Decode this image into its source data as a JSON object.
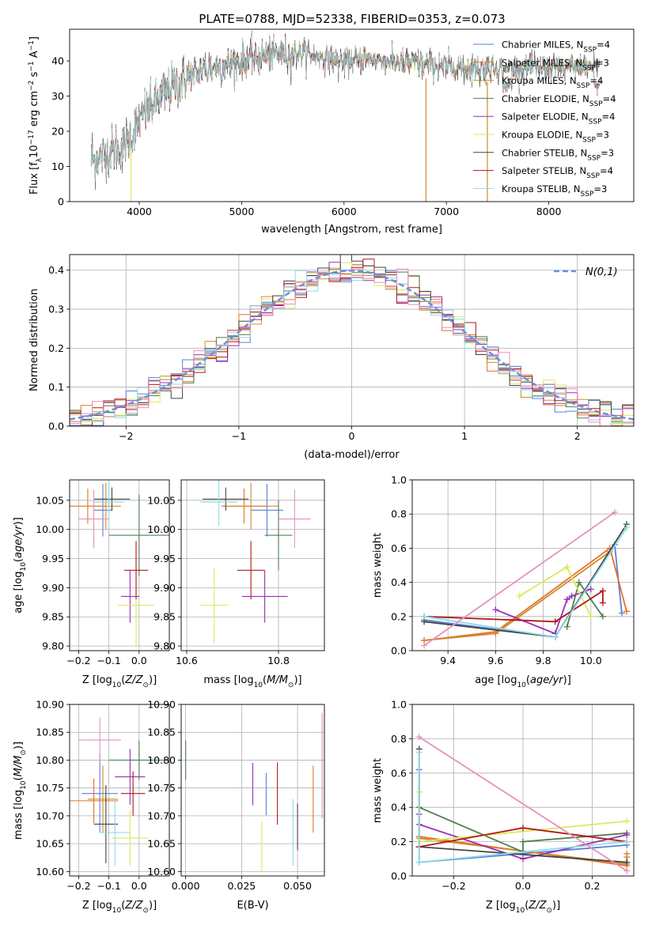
{
  "figure_title": "PLATE=0788, MJD=52338, FIBERID=0353, z=0.073",
  "colors": {
    "Chabrier MILES": "#5b7fd6",
    "Salpeter MILES": "#e2722a",
    "Kroupa MILES": "#d08a2d",
    "Chabrier ELODIE": "#4f7f50",
    "Salpeter ELODIE": "#9a2fb5",
    "Kroupa ELODIE": "#d9ea5b",
    "Chabrier STELIB": "#444444",
    "Salpeter STELIB": "#b01818",
    "Kroupa STELIB": "#8fdce6",
    "pink": "#e88fbf",
    "normal": "#6a8fe0"
  },
  "chart_data": [
    {
      "id": "spectrum",
      "type": "line",
      "title": "PLATE=0788, MJD=52338, FIBERID=0353, z=0.073",
      "xlabel": "wavelength [Angstrom, rest frame]",
      "ylabel": "Flux [f_λ 10^-17 erg cm^-2 s^-1 A^-1]",
      "xlim": [
        3320,
        8830
      ],
      "ylim": [
        0,
        49
      ],
      "xticks": [
        "4000",
        "5000",
        "6000",
        "7000",
        "8000"
      ],
      "yticks": [
        "0",
        "10",
        "20",
        "30",
        "40"
      ],
      "legend_position": "top-right",
      "legend": [
        "Chabrier MILES, N_SSP=4",
        "Salpeter MILES, N_SSP=3",
        "Kroupa MILES, N_SSP=4",
        "Chabrier ELODIE, N_SSP=4",
        "Salpeter ELODIE, N_SSP=4",
        "Kroupa ELODIE, N_SSP=3",
        "Chabrier STELIB, N_SSP=3",
        "Salpeter STELIB, N_SSP=4",
        "Kroupa STELIB, N_SSP=3"
      ],
      "continuum": {
        "x": [
          3550,
          3700,
          3850,
          3950,
          4050,
          4150,
          4250,
          4350,
          4450,
          4600,
          4800,
          5000,
          5200,
          5400,
          5600,
          5800,
          6000,
          6200,
          6400,
          6600,
          6800,
          7000,
          7200,
          7400,
          7600,
          7800,
          8000,
          8200,
          8400,
          8500
        ],
        "y": [
          12,
          14,
          16,
          20,
          25,
          28,
          31,
          33,
          35,
          37,
          38.5,
          40,
          41.5,
          42,
          42,
          41,
          39.5,
          40.5,
          40,
          39.5,
          39,
          38.5,
          38,
          38,
          38,
          38,
          38,
          38,
          38.5,
          39
        ]
      },
      "dropouts_x": [
        3920,
        6800,
        7400
      ]
    },
    {
      "id": "residuals",
      "type": "histogram",
      "xlabel": "(data-model)/error",
      "ylabel": "Normed distribution",
      "xlim": [
        -2.5,
        2.5
      ],
      "ylim": [
        0,
        0.44
      ],
      "xticks": [
        "−2",
        "−1",
        "0",
        "1",
        "2"
      ],
      "yticks": [
        "0.0",
        "0.1",
        "0.2",
        "0.3",
        "0.4"
      ],
      "bin_width": 0.1,
      "normal_label": "N(0,1)",
      "grid": true
    },
    {
      "id": "age_vs_Z",
      "type": "errorbar",
      "xlabel": "Z [log10(Z/Z_sun)]",
      "ylabel": "age [log10(age/yr)]",
      "xlim": [
        -0.23,
        0.1
      ],
      "ylim": [
        9.792,
        10.085
      ],
      "xticks": [
        "−0.2",
        "−0.1",
        "0.0"
      ],
      "yticks": [
        "9.80",
        "9.85",
        "9.90",
        "9.95",
        "10.00",
        "10.05"
      ],
      "points": [
        {
          "c": "Chabrier MILES",
          "x": -0.12,
          "y": 10.033,
          "xe": 0.03,
          "ye": 0.045
        },
        {
          "c": "Salpeter MILES",
          "x": -0.17,
          "y": 10.04,
          "xe": 0.06,
          "ye": 0.03
        },
        {
          "c": "Kroupa MILES",
          "x": -0.11,
          "y": 10.04,
          "xe": 0.05,
          "ye": 0.04
        },
        {
          "c": "Chabrier ELODIE",
          "x": 0.0,
          "y": 9.99,
          "xe": 0.1,
          "ye": 0.07
        },
        {
          "c": "Salpeter ELODIE",
          "x": -0.03,
          "y": 9.885,
          "xe": 0.03,
          "ye": 0.045
        },
        {
          "c": "Kroupa ELODIE",
          "x": -0.01,
          "y": 9.87,
          "xe": 0.06,
          "ye": 0.07
        },
        {
          "c": "Chabrier STELIB",
          "x": -0.09,
          "y": 10.052,
          "xe": 0.06,
          "ye": 0.02
        },
        {
          "c": "Salpeter STELIB",
          "x": -0.01,
          "y": 9.93,
          "xe": 0.04,
          "ye": 0.05
        },
        {
          "c": "Kroupa STELIB",
          "x": -0.1,
          "y": 10.047,
          "xe": 0.05,
          "ye": 0.04
        },
        {
          "c": "pink",
          "x": -0.15,
          "y": 10.018,
          "xe": 0.05,
          "ye": 0.05
        }
      ]
    },
    {
      "id": "age_vs_mass",
      "type": "errorbar",
      "xlabel": "mass [log10(M/M_sun)]",
      "ylabel": "",
      "xlim": [
        10.588,
        10.9
      ],
      "ylim": [
        9.792,
        10.085
      ],
      "xticks": [
        "10.6",
        "10.8"
      ],
      "yticks": [
        "9.80",
        "9.85",
        "9.90",
        "9.95",
        "10.00",
        "10.05"
      ],
      "points": [
        {
          "c": "Chabrier MILES",
          "x": 10.775,
          "y": 10.033,
          "xe": 0.035,
          "ye": 0.045
        },
        {
          "c": "Salpeter MILES",
          "x": 10.725,
          "y": 10.04,
          "xe": 0.05,
          "ye": 0.03
        },
        {
          "c": "Kroupa MILES",
          "x": 10.74,
          "y": 10.04,
          "xe": 0.06,
          "ye": 0.04
        },
        {
          "c": "Chabrier ELODIE",
          "x": 10.8,
          "y": 9.99,
          "xe": 0.03,
          "ye": 0.06
        },
        {
          "c": "Salpeter ELODIE",
          "x": 10.77,
          "y": 9.885,
          "xe": 0.05,
          "ye": 0.045
        },
        {
          "c": "Kroupa ELODIE",
          "x": 10.66,
          "y": 9.87,
          "xe": 0.03,
          "ye": 0.065
        },
        {
          "c": "Chabrier STELIB",
          "x": 10.685,
          "y": 10.052,
          "xe": 0.05,
          "ye": 0.02
        },
        {
          "c": "Salpeter STELIB",
          "x": 10.74,
          "y": 9.93,
          "xe": 0.03,
          "ye": 0.05
        },
        {
          "c": "Kroupa STELIB",
          "x": 10.67,
          "y": 10.047,
          "xe": 0.04,
          "ye": 0.04
        },
        {
          "c": "pink",
          "x": 10.835,
          "y": 10.018,
          "xe": 0.035,
          "ye": 0.05
        }
      ]
    },
    {
      "id": "weight_vs_age",
      "type": "line",
      "xlabel": "age [log10(age/yr)]",
      "ylabel": "mass weight",
      "xlim": [
        9.25,
        10.18
      ],
      "ylim": [
        0,
        1
      ],
      "xticks": [
        "9.4",
        "9.6",
        "9.8",
        "10.0"
      ],
      "yticks": [
        "0.0",
        "0.2",
        "0.4",
        "0.6",
        "0.8",
        "1.0"
      ],
      "grid": true,
      "series": [
        {
          "c": "Chabrier MILES",
          "x": [
            9.3,
            9.85,
            10.1,
            10.13
          ],
          "y": [
            0.18,
            0.08,
            0.62,
            0.22
          ]
        },
        {
          "c": "Salpeter MILES",
          "x": [
            9.3,
            9.6,
            10.08,
            10.15
          ],
          "y": [
            0.06,
            0.11,
            0.6,
            0.23
          ]
        },
        {
          "c": "Kroupa MILES",
          "x": [
            9.3,
            9.6,
            10.08
          ],
          "y": [
            0.06,
            0.1,
            0.58
          ]
        },
        {
          "c": "Chabrier ELODIE",
          "x": [
            9.9,
            9.95,
            10.05
          ],
          "y": [
            0.14,
            0.4,
            0.2
          ]
        },
        {
          "c": "Salpeter ELODIE",
          "x": [
            9.6,
            9.85,
            9.9,
            9.92,
            10.0
          ],
          "y": [
            0.24,
            0.1,
            0.3,
            0.32,
            0.36
          ]
        },
        {
          "c": "Kroupa ELODIE",
          "x": [
            9.7,
            9.9,
            10.0
          ],
          "y": [
            0.32,
            0.49,
            0.2
          ]
        },
        {
          "c": "Chabrier STELIB",
          "x": [
            9.3,
            9.85,
            10.15
          ],
          "y": [
            0.17,
            0.08,
            0.74
          ]
        },
        {
          "c": "Salpeter STELIB",
          "x": [
            9.3,
            9.85,
            10.05,
            10.05
          ],
          "y": [
            0.2,
            0.17,
            0.35,
            0.28
          ]
        },
        {
          "c": "Kroupa STELIB",
          "x": [
            9.3,
            9.85,
            10.15
          ],
          "y": [
            0.2,
            0.08,
            0.72
          ]
        },
        {
          "c": "pink",
          "x": [
            9.3,
            10.1
          ],
          "y": [
            0.03,
            0.81
          ]
        }
      ]
    },
    {
      "id": "mass_vs_Z",
      "type": "errorbar",
      "xlabel": "Z [log10(Z/Z_sun)]",
      "ylabel": "mass [log10(M/M_sun)]",
      "xlim": [
        -0.23,
        0.1
      ],
      "ylim": [
        10.592,
        10.9
      ],
      "xticks": [
        "−0.2",
        "−0.1",
        "0.0"
      ],
      "yticks": [
        "10.60",
        "10.65",
        "10.70",
        "10.75",
        "10.80",
        "10.85",
        "10.90"
      ],
      "points": [
        {
          "c": "Chabrier MILES",
          "x": -0.13,
          "y": 10.74,
          "xe": 0.06,
          "ye": 0.07
        },
        {
          "c": "Salpeter MILES",
          "x": -0.15,
          "y": 10.727,
          "xe": 0.08,
          "ye": 0.04
        },
        {
          "c": "Kroupa MILES",
          "x": -0.12,
          "y": 10.73,
          "xe": 0.05,
          "ye": 0.06
        },
        {
          "c": "Chabrier ELODIE",
          "x": 0.0,
          "y": 10.8,
          "xe": 0.1,
          "ye": 0.035
        },
        {
          "c": "Salpeter ELODIE",
          "x": -0.03,
          "y": 10.77,
          "xe": 0.05,
          "ye": 0.05
        },
        {
          "c": "Kroupa ELODIE",
          "x": -0.03,
          "y": 10.66,
          "xe": 0.06,
          "ye": 0.05
        },
        {
          "c": "Chabrier STELIB",
          "x": -0.11,
          "y": 10.685,
          "xe": 0.04,
          "ye": 0.07
        },
        {
          "c": "Salpeter STELIB",
          "x": -0.02,
          "y": 10.74,
          "xe": 0.04,
          "ye": 0.04
        },
        {
          "c": "Kroupa STELIB",
          "x": -0.08,
          "y": 10.67,
          "xe": 0.05,
          "ye": 0.06
        },
        {
          "c": "pink",
          "x": -0.13,
          "y": 10.836,
          "xe": 0.07,
          "ye": 0.04
        }
      ]
    },
    {
      "id": "mass_vs_EBV",
      "type": "errorbar",
      "xlabel": "E(B-V)",
      "ylabel": "",
      "xlim": [
        -0.002,
        0.062
      ],
      "ylim": [
        10.592,
        10.9
      ],
      "xticks": [
        "0.000",
        "0.025",
        "0.050"
      ],
      "yticks": [
        "10.60",
        "10.65",
        "10.70",
        "10.75",
        "10.80",
        "10.85",
        "10.90"
      ],
      "points": [
        {
          "c": "Chabrier ELODIE",
          "x": 0.0,
          "y": 10.8,
          "ye": 0.035
        },
        {
          "c": "Salpeter ELODIE",
          "x": 0.03,
          "y": 10.757,
          "ye": 0.038
        },
        {
          "c": "Kroupa ELODIE",
          "x": 0.034,
          "y": 10.645,
          "ye": 0.045
        },
        {
          "c": "Chabrier MILES",
          "x": 0.036,
          "y": 10.739,
          "ye": 0.038
        },
        {
          "c": "Salpeter STELIB",
          "x": 0.041,
          "y": 10.74,
          "ye": 0.056
        },
        {
          "c": "Kroupa STELIB",
          "x": 0.048,
          "y": 10.67,
          "ye": 0.06
        },
        {
          "c": "Chabrier STELIB",
          "x": 0.05,
          "y": 10.68,
          "ye": 0.042
        },
        {
          "c": "Salpeter MILES",
          "x": 0.057,
          "y": 10.73,
          "ye": 0.06
        },
        {
          "c": "pink",
          "x": 0.061,
          "y": 10.79,
          "ye": 0.095
        }
      ]
    },
    {
      "id": "weight_vs_Z",
      "type": "line",
      "xlabel": "Z [log10(Z/Z_sun)]",
      "ylabel": "mass weight",
      "xlim": [
        -0.32,
        0.32
      ],
      "ylim": [
        0,
        1
      ],
      "xticks": [
        "−0.2",
        "0.0",
        "0.2"
      ],
      "yticks": [
        "0.0",
        "0.2",
        "0.4",
        "0.6",
        "0.8",
        "1.0"
      ],
      "grid": true,
      "series": [
        {
          "c": "Chabrier MILES",
          "x": [
            -0.3,
            -0.3,
            0.3
          ],
          "y": [
            0.62,
            0.08,
            0.18
          ]
        },
        {
          "c": "Salpeter MILES",
          "x": [
            -0.3,
            0.3,
            0.3
          ],
          "y": [
            0.23,
            0.06,
            0.11
          ]
        },
        {
          "c": "Kroupa MILES",
          "x": [
            -0.3,
            0.3,
            0.3
          ],
          "y": [
            0.22,
            0.07,
            0.13
          ]
        },
        {
          "c": "Chabrier ELODIE",
          "x": [
            -0.3,
            0.0,
            0.0,
            0.3
          ],
          "y": [
            0.4,
            0.14,
            0.2,
            0.25
          ]
        },
        {
          "c": "Salpeter ELODIE",
          "x": [
            -0.3,
            -0.3,
            0.0,
            0.3
          ],
          "y": [
            0.36,
            0.3,
            0.1,
            0.24
          ]
        },
        {
          "c": "Kroupa ELODIE",
          "x": [
            -0.3,
            -0.3,
            0.3
          ],
          "y": [
            0.49,
            0.2,
            0.32
          ]
        },
        {
          "c": "Chabrier STELIB",
          "x": [
            -0.3,
            -0.3,
            0.3
          ],
          "y": [
            0.74,
            0.17,
            0.08
          ]
        },
        {
          "c": "Salpeter STELIB",
          "x": [
            -0.3,
            0.0,
            0.3
          ],
          "y": [
            0.17,
            0.28,
            0.2
          ]
        },
        {
          "c": "Kroupa STELIB",
          "x": [
            -0.3,
            -0.3,
            0.3
          ],
          "y": [
            0.72,
            0.08,
            0.2
          ]
        },
        {
          "c": "pink",
          "x": [
            -0.3,
            0.3
          ],
          "y": [
            0.81,
            0.03
          ]
        }
      ]
    }
  ]
}
